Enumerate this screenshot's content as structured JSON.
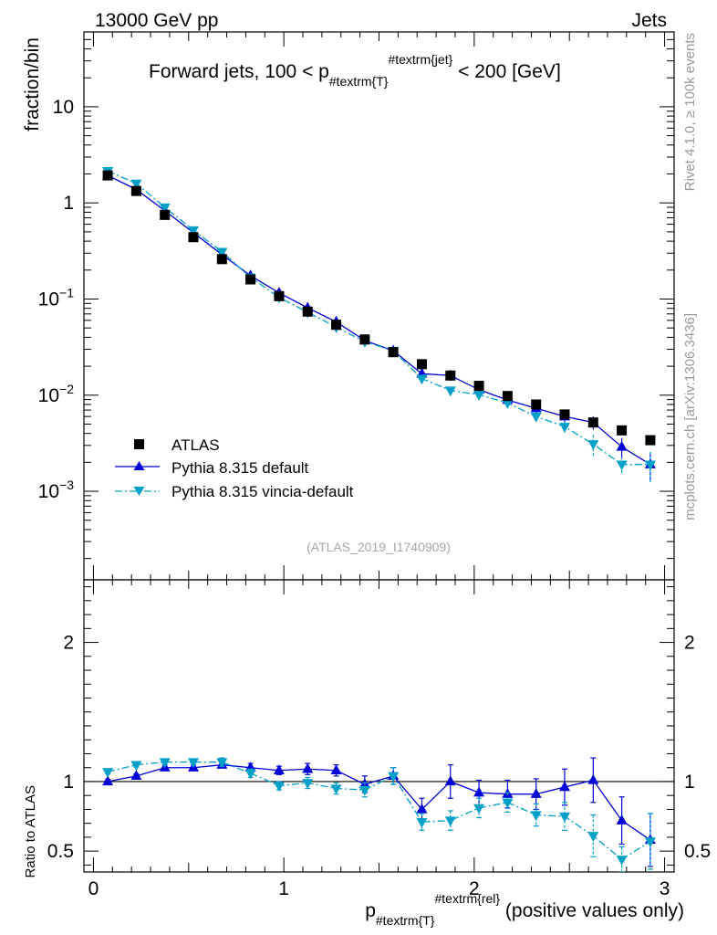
{
  "header": {
    "left": "13000 GeV pp",
    "right": "Jets",
    "side_top": "Rivet 4.1.0, ≥ 100k events",
    "side_bottom": "mcplots.cern.ch [arXiv:1306.3436]"
  },
  "chart_data": {
    "type": "scatter",
    "title_parts": {
      "pre": "Forward jets, 100 < p",
      "sub": "#textrm{T}",
      "sup": "#textrm{jet}",
      "post": " < 200 [GeV]"
    },
    "reference_label": "(ATLAS_2019_I1740909)",
    "ylabel": "fraction/bin",
    "ratio_ylabel": "Ratio to ATLAS",
    "xlabel_parts": {
      "pre": "p",
      "sub": "#textrm{T}",
      "sup": "#textrm{rel}",
      "post": " (positive values only)"
    },
    "xlim": [
      -0.05,
      3.05
    ],
    "ylim": [
      0.00012,
      60
    ],
    "ylog": true,
    "ratio_ylim": [
      0.35,
      2.45
    ],
    "x_ticks": [
      0,
      1,
      2,
      3
    ],
    "x_tick_labels": [
      "0",
      "1",
      "2",
      "3"
    ],
    "y_ticks": [
      0.001,
      0.01,
      0.1,
      1,
      10
    ],
    "y_tick_labels": [
      {
        "base": "10",
        "exp": "−3"
      },
      {
        "base": "10",
        "exp": "−2"
      },
      {
        "base": "10",
        "exp": "−1"
      },
      {
        "base": "1",
        "exp": ""
      },
      {
        "base": "10",
        "exp": ""
      }
    ],
    "ratio_ticks": [
      0.5,
      1,
      2
    ],
    "ratio_tick_labels": [
      "0.5",
      "1",
      "2"
    ],
    "x": [
      0.075,
      0.225,
      0.375,
      0.525,
      0.675,
      0.825,
      0.975,
      1.125,
      1.275,
      1.425,
      1.575,
      1.725,
      1.875,
      2.025,
      2.175,
      2.325,
      2.475,
      2.625,
      2.775,
      2.925
    ],
    "legend_position": "lower-left",
    "series": [
      {
        "name": "ATLAS",
        "style": "data",
        "color": "#000000",
        "values": [
          1.93,
          1.33,
          0.75,
          0.44,
          0.26,
          0.16,
          0.107,
          0.074,
          0.054,
          0.038,
          0.028,
          0.021,
          0.016,
          0.0125,
          0.0098,
          0.008,
          0.0063,
          0.0052,
          0.0043,
          0.0034
        ]
      },
      {
        "name": "Pythia 8.315 default",
        "style": "solid",
        "color": "#0000d9",
        "values": [
          1.93,
          1.38,
          0.83,
          0.49,
          0.29,
          0.175,
          0.116,
          0.081,
          0.058,
          0.037,
          0.029,
          0.0167,
          0.016,
          0.0114,
          0.0089,
          0.0073,
          0.006,
          0.0052,
          0.0029,
          0.0019
        ],
        "ratio": [
          1.0,
          1.04,
          1.1,
          1.1,
          1.12,
          1.1,
          1.08,
          1.09,
          1.08,
          0.98,
          1.04,
          0.8,
          1.0,
          0.92,
          0.91,
          0.91,
          0.96,
          1.01,
          0.72,
          0.58
        ],
        "ratio_err": [
          0.015,
          0.015,
          0.02,
          0.02,
          0.02,
          0.03,
          0.03,
          0.04,
          0.04,
          0.06,
          0.06,
          0.08,
          0.12,
          0.09,
          0.1,
          0.11,
          0.13,
          0.16,
          0.17,
          0.19
        ]
      },
      {
        "name": "Pythia 8.315 vincia-default",
        "style": "dashdot",
        "color": "#00a0c8",
        "values": [
          2.15,
          1.59,
          0.9,
          0.52,
          0.31,
          0.168,
          0.104,
          0.073,
          0.051,
          0.036,
          0.029,
          0.0149,
          0.0112,
          0.0101,
          0.0083,
          0.006,
          0.0047,
          0.0031,
          0.0019,
          0.0019
        ],
        "ratio": [
          1.07,
          1.12,
          1.14,
          1.14,
          1.14,
          1.06,
          0.97,
          0.99,
          0.95,
          0.94,
          1.04,
          0.71,
          0.72,
          0.81,
          0.85,
          0.76,
          0.75,
          0.61,
          0.44,
          0.57
        ],
        "ratio_err": [
          0.015,
          0.015,
          0.02,
          0.02,
          0.03,
          0.03,
          0.03,
          0.04,
          0.04,
          0.05,
          0.06,
          0.06,
          0.07,
          0.07,
          0.07,
          0.08,
          0.1,
          0.15,
          0.09,
          0.2
        ]
      }
    ]
  }
}
